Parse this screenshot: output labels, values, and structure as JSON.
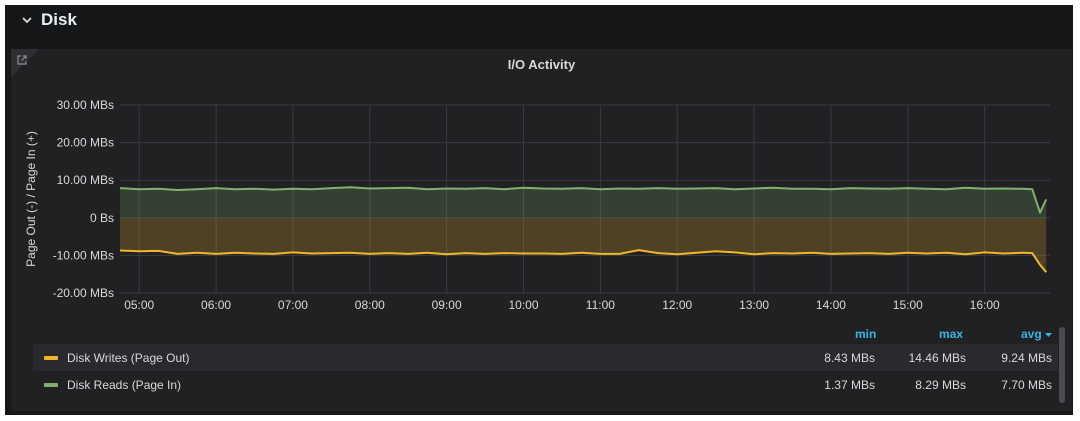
{
  "row": {
    "title": "Disk",
    "collapsed": false
  },
  "panel": {
    "title": "I/O Activity",
    "link_icon": "external-link-icon"
  },
  "colors": {
    "background": "#161719",
    "panel": "#212124",
    "writes": "#f2b629",
    "reads": "#7eb26d",
    "header_accent": "#33b5e5"
  },
  "chart_data": {
    "type": "area",
    "ylabel": "Page Out (-) / Page In (+)",
    "yticks": [
      "30.00 MBs",
      "20.00 MBs",
      "10.00 MBs",
      "0 Bs",
      "-10.00 MBs",
      "-20.00 MBs"
    ],
    "ytick_values": [
      30,
      20,
      10,
      0,
      -10,
      -20
    ],
    "ylim": [
      -20,
      30
    ],
    "xticks": [
      "05:00",
      "06:00",
      "07:00",
      "08:00",
      "09:00",
      "10:00",
      "11:00",
      "12:00",
      "13:00",
      "14:00",
      "15:00",
      "16:00"
    ],
    "xtick_hours": [
      5,
      6,
      7,
      8,
      9,
      10,
      11,
      12,
      13,
      14,
      15,
      16
    ],
    "x_range_hours": [
      4.75,
      16.85
    ],
    "grid": true,
    "series": [
      {
        "name": "Disk Reads (Page In)",
        "color": "#7eb26d",
        "x_hours": [
          4.75,
          5.0,
          5.25,
          5.5,
          5.75,
          6.0,
          6.25,
          6.5,
          6.75,
          7.0,
          7.25,
          7.5,
          7.75,
          8.0,
          8.25,
          8.5,
          8.75,
          9.0,
          9.25,
          9.5,
          9.75,
          10.0,
          10.25,
          10.5,
          10.75,
          11.0,
          11.25,
          11.5,
          11.75,
          12.0,
          12.25,
          12.5,
          12.75,
          13.0,
          13.25,
          13.5,
          13.75,
          14.0,
          14.25,
          14.5,
          14.75,
          15.0,
          15.25,
          15.5,
          15.75,
          16.0,
          16.25,
          16.5,
          16.62,
          16.72,
          16.8
        ],
        "values": [
          7.9,
          7.6,
          7.7,
          7.4,
          7.6,
          7.9,
          7.6,
          7.7,
          7.5,
          7.7,
          7.6,
          7.9,
          8.1,
          7.8,
          7.9,
          8.0,
          7.6,
          7.8,
          7.7,
          7.9,
          7.6,
          8.0,
          7.8,
          7.7,
          7.9,
          7.6,
          7.8,
          7.7,
          7.9,
          7.7,
          7.8,
          7.9,
          7.6,
          7.8,
          8.0,
          7.7,
          7.7,
          7.6,
          7.9,
          7.8,
          7.7,
          7.9,
          7.7,
          7.6,
          8.0,
          7.7,
          7.8,
          7.7,
          7.6,
          1.37,
          4.9
        ]
      },
      {
        "name": "Disk Writes (Page Out)",
        "color": "#f2b629",
        "x_hours": [
          4.75,
          5.0,
          5.25,
          5.5,
          5.75,
          6.0,
          6.25,
          6.5,
          6.75,
          7.0,
          7.25,
          7.5,
          7.75,
          8.0,
          8.25,
          8.5,
          8.75,
          9.0,
          9.25,
          9.5,
          9.75,
          10.0,
          10.25,
          10.5,
          10.75,
          11.0,
          11.25,
          11.5,
          11.75,
          12.0,
          12.25,
          12.5,
          12.75,
          13.0,
          13.25,
          13.5,
          13.75,
          14.0,
          14.25,
          14.5,
          14.75,
          15.0,
          15.25,
          15.5,
          15.75,
          16.0,
          16.25,
          16.5,
          16.62,
          16.72,
          16.8
        ],
        "values": [
          -8.7,
          -8.9,
          -8.8,
          -9.6,
          -9.3,
          -9.6,
          -9.3,
          -9.5,
          -9.6,
          -9.2,
          -9.5,
          -9.4,
          -9.3,
          -9.6,
          -9.4,
          -9.6,
          -9.3,
          -9.7,
          -9.4,
          -9.6,
          -9.4,
          -9.5,
          -9.5,
          -9.6,
          -9.3,
          -9.6,
          -9.6,
          -8.6,
          -9.4,
          -9.7,
          -9.3,
          -8.9,
          -9.2,
          -9.7,
          -9.4,
          -9.5,
          -9.3,
          -9.6,
          -9.5,
          -9.4,
          -9.6,
          -9.3,
          -9.5,
          -9.3,
          -9.7,
          -9.2,
          -9.5,
          -9.3,
          -9.4,
          -12.5,
          -14.46
        ]
      }
    ]
  },
  "legend": {
    "headers": {
      "min": "min",
      "max": "max",
      "avg": "avg"
    },
    "sort_icon": "caret-down-icon",
    "rows": [
      {
        "label": "Disk Writes (Page Out)",
        "color": "#f2b629",
        "min": "8.43 MBs",
        "max": "14.46 MBs",
        "avg": "9.24 MBs"
      },
      {
        "label": "Disk Reads (Page In)",
        "color": "#7eb26d",
        "min": "1.37 MBs",
        "max": "8.29 MBs",
        "avg": "7.70 MBs"
      }
    ]
  }
}
